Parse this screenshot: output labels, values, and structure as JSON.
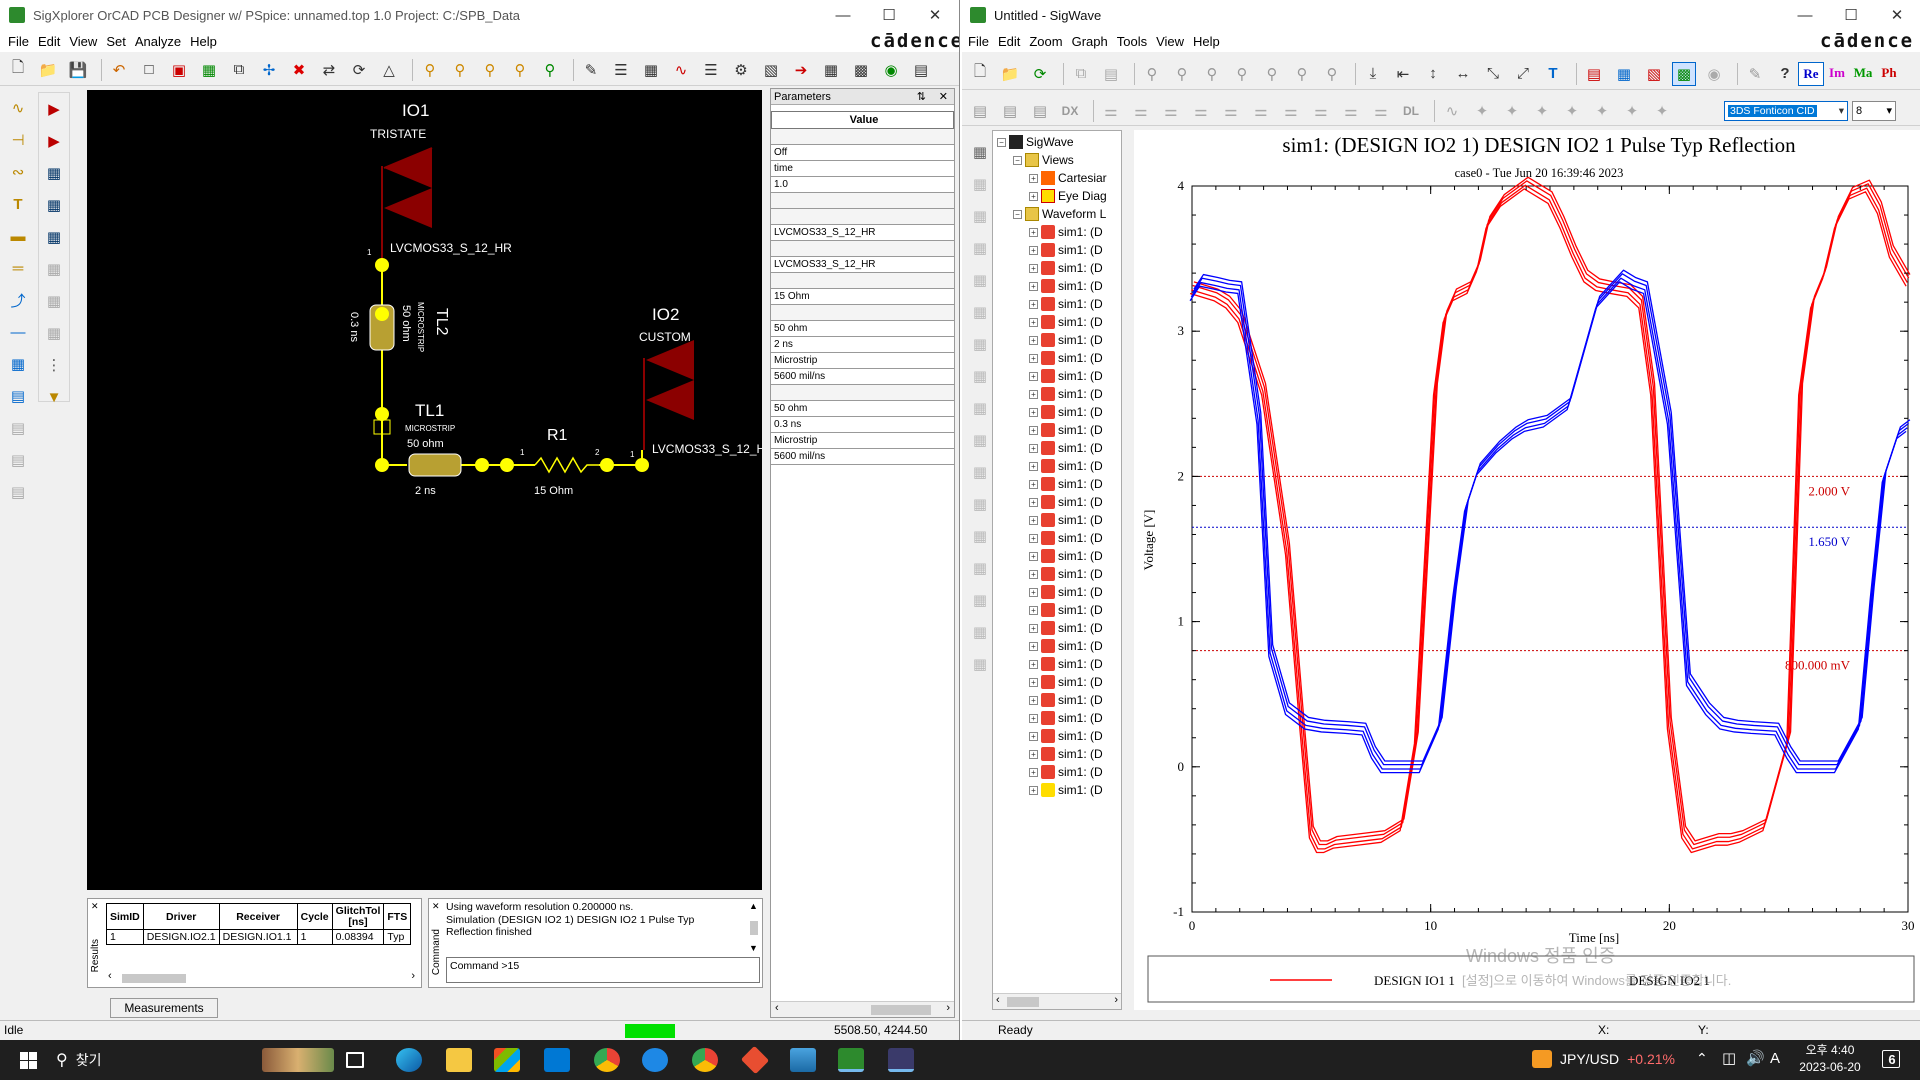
{
  "left_window": {
    "title": "SigXplorer OrCAD PCB Designer w/ PSpice: unnamed.top 1.0   Project: C:/SPB_Data",
    "menu": [
      "File",
      "Edit",
      "View",
      "Set",
      "Analyze",
      "Help"
    ],
    "brand": "cādence",
    "schematic": {
      "io1": {
        "name": "IO1",
        "type": "TRISTATE",
        "model": "LVCMOS33_S_12_HR",
        "pin": "1"
      },
      "io2": {
        "name": "IO2",
        "type": "CUSTOM",
        "model": "LVCMOS33_S_12_H",
        "pin": "1"
      },
      "tl2": {
        "name": "TL2",
        "kind": "MICROSTRIP",
        "impedance": "50 ohm",
        "delay": "0.3 ns"
      },
      "tl1": {
        "name": "TL1",
        "kind": "MICROSTRIP",
        "impedance": "50 ohm",
        "delay": "2 ns"
      },
      "r1": {
        "name": "R1",
        "value": "15 Ohm",
        "pin1": "1",
        "pin2": "2"
      }
    },
    "parameters": {
      "title": "Parameters",
      "value_header": "Value",
      "rows": [
        "",
        "Off",
        "time",
        "1.0",
        "",
        "",
        "LVCMOS33_S_12_HR",
        "",
        "LVCMOS33_S_12_HR",
        "",
        "15 Ohm",
        "",
        "50 ohm",
        "2 ns",
        "Microstrip",
        "5600 mil/ns",
        "",
        "50 ohm",
        "0.3 ns",
        "Microstrip",
        "5600 mil/ns"
      ]
    },
    "results": {
      "label": "Results",
      "headers": [
        "SimID",
        "Driver",
        "Receiver",
        "Cycle",
        "GlitchTol [ns]",
        "FTS"
      ],
      "rows": [
        [
          "1",
          "DESIGN.IO2.1",
          "DESIGN.IO1.1",
          "1",
          "0.08394",
          "Typ"
        ]
      ]
    },
    "command": {
      "label": "Command",
      "log": [
        "Using waveform resolution 0.200000 ns.",
        "Simulation (DESIGN IO2 1) DESIGN IO2 1 Pulse Typ",
        "Reflection finished"
      ],
      "input": "Command >15"
    },
    "measurements_tab": "Measurements",
    "status": {
      "text": "Idle",
      "coords": "5508.50, 4244.50"
    }
  },
  "right_window": {
    "title": "Untitled - SigWave",
    "menu": [
      "File",
      "Edit",
      "Zoom",
      "Graph",
      "Tools",
      "View",
      "Help"
    ],
    "brand": "cādence",
    "toolbar_toggles": [
      "Re",
      "Im",
      "Ma",
      "Ph"
    ],
    "font_select": "3DS Fonticon CID",
    "size_select": "8",
    "tree": {
      "root": "SigWave",
      "views": "Views",
      "cartesian": "Cartesiar",
      "eye": "Eye Diag",
      "waveform": "Waveform L",
      "item_label": "sim1: (D",
      "item_count": 32
    },
    "status": {
      "text": "Ready",
      "x": "X:",
      "y": "Y:"
    }
  },
  "chart_data": {
    "type": "line",
    "title": "sim1: (DESIGN IO2 1) DESIGN IO2 1 Pulse Typ Reflection",
    "subtitle": "case0 - Tue Jun 20 16:39:46 2023",
    "xlabel": "Time [ns]",
    "ylabel": "Voltage [V]",
    "xlim": [
      0,
      30
    ],
    "ylim": [
      -1,
      4
    ],
    "xticks": [
      0,
      10,
      20,
      30
    ],
    "yticks": [
      -1,
      0,
      1,
      2,
      3,
      4
    ],
    "grid": false,
    "legend_position": "bottom",
    "thresholds": [
      {
        "value": 2.0,
        "label": "2.000 V",
        "color": "#cc0000"
      },
      {
        "value": 1.65,
        "label": "1.650 V",
        "color": "#0000cc"
      },
      {
        "value": 0.8,
        "label": "800.000 mV",
        "color": "#cc0000"
      }
    ],
    "series": [
      {
        "name": "DESIGN IO1 1",
        "color": "#ff0000",
        "x": [
          0,
          0.4,
          1.0,
          1.5,
          2.0,
          3.0,
          4.0,
          4.6,
          5.0,
          5.3,
          5.6,
          6.0,
          7.0,
          8.0,
          8.8,
          9.4,
          9.8,
          10.2,
          10.6,
          11.0,
          11.6,
          12.0,
          12.4,
          13.0,
          14.0,
          15.0,
          15.5,
          16.0,
          16.5,
          17.0,
          17.6,
          18.3,
          18.8,
          19.3,
          20.0,
          20.6,
          21.0,
          21.6,
          22.0,
          22.5,
          23.0,
          24.0,
          25.0,
          25.5,
          26.0,
          26.5,
          27.0,
          27.6,
          28.3,
          28.8,
          29.3,
          30.0
        ],
        "y": [
          3.3,
          3.28,
          3.25,
          3.2,
          3.1,
          2.6,
          1.5,
          0.3,
          -0.45,
          -0.55,
          -0.55,
          -0.52,
          -0.5,
          -0.48,
          -0.4,
          0.2,
          1.4,
          2.6,
          3.1,
          3.25,
          3.3,
          3.45,
          3.75,
          3.9,
          4.02,
          3.92,
          3.75,
          3.55,
          3.38,
          3.32,
          3.3,
          3.28,
          3.2,
          2.6,
          0.3,
          -0.45,
          -0.55,
          -0.52,
          -0.5,
          -0.5,
          -0.48,
          -0.4,
          0.2,
          2.6,
          3.2,
          3.4,
          3.75,
          3.95,
          4.0,
          3.85,
          3.55,
          3.35
        ]
      },
      {
        "name": "DESIGN IO2 1",
        "color": "#0000ff",
        "x": [
          0,
          0.4,
          1.0,
          1.5,
          2.0,
          2.8,
          3.3,
          4.0,
          4.8,
          5.5,
          6.5,
          7.2,
          7.6,
          8.0,
          8.5,
          9.0,
          9.6,
          10.4,
          11.0,
          11.5,
          12.0,
          12.8,
          13.5,
          14.0,
          14.8,
          15.8,
          17.0,
          18.0,
          18.5,
          19.0,
          20.0,
          20.8,
          21.6,
          22.2,
          22.8,
          23.5,
          24.5,
          25.0,
          25.4,
          26.0,
          27.0,
          28.0,
          28.5,
          29.0,
          29.6,
          30.0
        ],
        "y": [
          3.25,
          3.35,
          3.33,
          3.31,
          3.3,
          2.4,
          0.8,
          0.4,
          0.3,
          0.28,
          0.27,
          0.26,
          0.1,
          0.0,
          0.0,
          0.0,
          0.0,
          0.3,
          1.2,
          1.8,
          2.05,
          2.2,
          2.3,
          2.35,
          2.38,
          2.5,
          3.2,
          3.38,
          3.33,
          3.3,
          2.4,
          0.6,
          0.4,
          0.3,
          0.28,
          0.27,
          0.26,
          0.1,
          0.0,
          0.0,
          0.0,
          0.3,
          1.2,
          2.0,
          2.3,
          2.35
        ]
      }
    ]
  },
  "taskbar": {
    "search": "찾기",
    "ticker": "JPY/USD",
    "change": "+0.21%",
    "ime": "A",
    "time": "오후 4:40",
    "date": "2023-06-20",
    "notif": "6"
  },
  "watermark": {
    "line1": "Windows 정품 인증",
    "line2": "[설정]으로 이동하여 Windows를 정품 인증합니다."
  },
  "colors": {
    "accent": "#0078d7",
    "io_red": "#8b0000",
    "node_yellow": "#ffff00",
    "tl_fill": "#b8a032"
  }
}
